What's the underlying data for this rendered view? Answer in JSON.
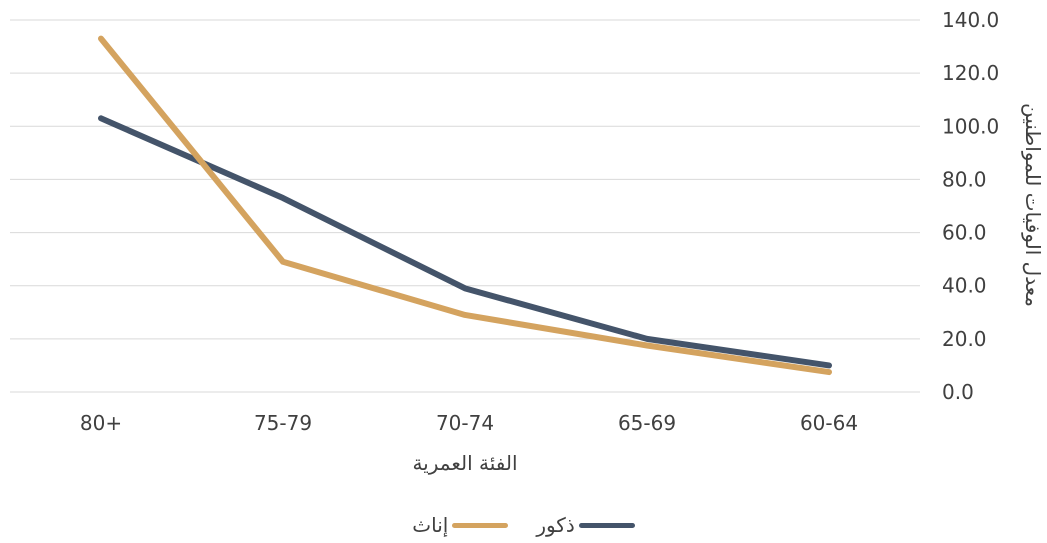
{
  "chart_data": {
    "type": "line",
    "categories": [
      "60-64",
      "65-69",
      "70-74",
      "75-79",
      "80+"
    ],
    "series": [
      {
        "name": "ذكور",
        "color": "#44546a",
        "values": [
          10.0,
          20.0,
          39.0,
          73.0,
          103.0
        ]
      },
      {
        "name": "إناث",
        "color": "#d4a35f",
        "values": [
          7.5,
          17.5,
          29.0,
          49.0,
          133.0
        ]
      }
    ],
    "title": "",
    "xlabel": "الفئة العمرية",
    "ylabel": "معدل الوفيات للمواطنين",
    "ylim": [
      0,
      140
    ],
    "yticks": [
      "0.0",
      "20.0",
      "40.0",
      "60.0",
      "80.0",
      "100.0",
      "120.0",
      "140.0"
    ],
    "y_axis_side": "right",
    "x_axis_reversed": true,
    "grid": true,
    "legend_position": "bottom"
  }
}
